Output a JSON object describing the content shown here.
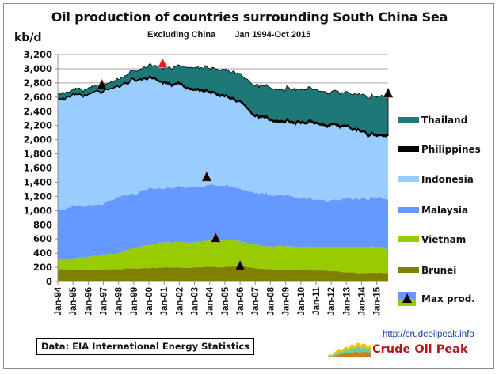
{
  "chart_data": {
    "type": "area",
    "stacked": true,
    "title": "Oil production of countries surrounding South China Sea",
    "subtitle_left": "Excluding China",
    "subtitle_right": "Jan 1994-Oct 2015",
    "ylabel": "kb/d",
    "xlabel": "",
    "ylim": [
      0,
      3200
    ],
    "ytick_step": 200,
    "yticks": [
      "0",
      "200",
      "400",
      "600",
      "800",
      "1,000",
      "1,200",
      "1,400",
      "1,600",
      "1,800",
      "2,000",
      "2,200",
      "2,400",
      "2,600",
      "2,800",
      "3,000",
      "3,200"
    ],
    "xticks": [
      "Jan-94",
      "Jan-95",
      "Jan-96",
      "Jan-97",
      "Jan-98",
      "Jan-99",
      "Jan-00",
      "Jan-01",
      "Jan-02",
      "Jan-03",
      "Jan-04",
      "Jan-05",
      "Jan-06",
      "Jan-07",
      "Jan-08",
      "Jan-09",
      "Jan-10",
      "Jan-11",
      "Jan-12",
      "Jan-13",
      "Jan-14",
      "Jan-15"
    ],
    "x_range_years": [
      1994.0,
      2015.75
    ],
    "grid": true,
    "legend_position": "right",
    "x": [
      1994,
      1995,
      1996,
      1997,
      1998,
      1999,
      2000,
      2001,
      2002,
      2003,
      2004,
      2005,
      2006,
      2007,
      2008,
      2009,
      2010,
      2011,
      2012,
      2013,
      2014,
      2015,
      2015.75
    ],
    "series": [
      {
        "name": "Brunei",
        "color": "#808000",
        "values": [
          175,
          170,
          170,
          170,
          175,
          180,
          190,
          195,
          195,
          200,
          205,
          205,
          215,
          185,
          170,
          160,
          160,
          160,
          150,
          130,
          120,
          125,
          120
        ]
      },
      {
        "name": "Vietnam",
        "color": "#99cc00",
        "values": [
          130,
          160,
          180,
          200,
          230,
          290,
          320,
          360,
          360,
          355,
          380,
          380,
          350,
          330,
          320,
          340,
          320,
          320,
          330,
          360,
          360,
          370,
          340
        ]
      },
      {
        "name": "Malaysia",
        "color": "#6699ff",
        "values": [
          695,
          740,
          730,
          720,
          790,
          770,
          790,
          775,
          775,
          780,
          785,
          770,
          735,
          745,
          730,
          700,
          700,
          660,
          670,
          680,
          690,
          690,
          700
        ]
      },
      {
        "name": "Indonesia",
        "color": "#99ccff",
        "values": [
          1560,
          1560,
          1570,
          1590,
          1560,
          1600,
          1560,
          1490,
          1420,
          1370,
          1300,
          1240,
          1220,
          1070,
          1060,
          1030,
          1040,
          1070,
          1060,
          1000,
          950,
          860,
          900
        ]
      },
      {
        "name": "Philippines",
        "color": "#000000",
        "values": [
          10,
          10,
          10,
          10,
          10,
          15,
          20,
          20,
          25,
          25,
          25,
          25,
          25,
          25,
          25,
          25,
          25,
          25,
          25,
          25,
          25,
          25,
          25
        ]
      },
      {
        "name": "Thailand",
        "color": "#1f7878",
        "values": [
          70,
          70,
          80,
          80,
          95,
          120,
          170,
          200,
          250,
          300,
          330,
          350,
          370,
          420,
          440,
          450,
          465,
          440,
          450,
          460,
          500,
          540,
          540
        ]
      }
    ],
    "max_prod_markers": [
      {
        "series": "Thailand",
        "label": "Max prod.",
        "x": 1996.9,
        "y": 2760,
        "color": "#000000"
      },
      {
        "series": "Total",
        "label": "Max prod.",
        "x": 2000.9,
        "y": 3060,
        "color": "#e8191e"
      },
      {
        "series": "Malaysia",
        "label": "Max prod.",
        "x": 2003.8,
        "y": 1460,
        "color": "#000000"
      },
      {
        "series": "Vietnam",
        "label": "Max prod.",
        "x": 2004.4,
        "y": 600,
        "color": "#000000"
      },
      {
        "series": "Brunei",
        "label": "Max prod.",
        "x": 2006.0,
        "y": 210,
        "color": "#000000"
      },
      {
        "series": "Thailand",
        "label": "Max prod.",
        "x": 2015.75,
        "y": 2640,
        "color": "#000000"
      }
    ],
    "legend": [
      {
        "label": "Thailand",
        "color": "#1f7878"
      },
      {
        "label": "Philippines",
        "color": "#000000"
      },
      {
        "label": "Indonesia",
        "color": "#99ccff"
      },
      {
        "label": "Malaysia",
        "color": "#6699ff"
      },
      {
        "label": "Vietnam",
        "color": "#99cc00"
      },
      {
        "label": "Brunei",
        "color": "#808000"
      },
      {
        "label": "Max prod.",
        "color": "#000000",
        "marker": "triangle"
      }
    ]
  },
  "footer": {
    "source": "Data: EIA International Energy Statistics",
    "link": "http://crudeoilpeak.info",
    "brand": "Crude Oil Peak"
  }
}
